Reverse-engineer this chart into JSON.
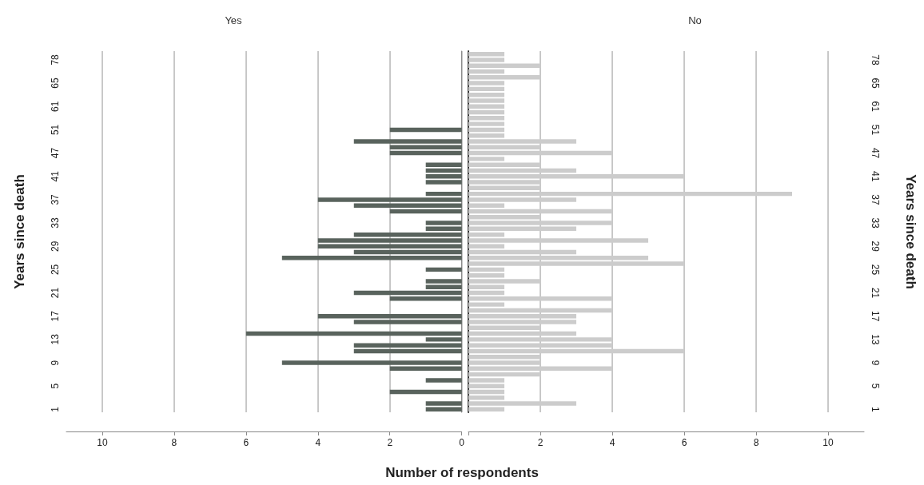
{
  "chart_data": [
    {
      "type": "bar",
      "orientation": "horizontal",
      "title": "Yes",
      "ylabel": "Years since death",
      "xlabel": "Number of respondents",
      "categories": [
        null,
        "78",
        null,
        null,
        null,
        "65",
        null,
        null,
        null,
        "61",
        null,
        null,
        null,
        "51",
        null,
        null,
        null,
        "47",
        null,
        null,
        null,
        "41",
        null,
        null,
        null,
        "37",
        null,
        null,
        null,
        "33",
        null,
        null,
        null,
        "29",
        null,
        null,
        null,
        "25",
        null,
        null,
        null,
        "21",
        null,
        null,
        null,
        "17",
        null,
        null,
        null,
        "13",
        null,
        null,
        null,
        "9",
        null,
        null,
        null,
        "5",
        null,
        null,
        null,
        "1"
      ],
      "series": [
        {
          "color": "#59635d",
          "values": [
            0,
            0,
            0,
            0,
            0,
            0,
            0,
            0,
            0,
            0,
            0,
            0,
            0,
            2,
            0,
            3,
            2,
            2,
            0,
            1,
            1,
            1,
            1,
            0,
            1,
            4,
            3,
            2,
            0,
            1,
            1,
            3,
            4,
            4,
            3,
            5,
            0,
            1,
            0,
            1,
            1,
            3,
            2,
            0,
            0,
            4,
            3,
            0,
            6,
            1,
            3,
            3,
            0,
            5,
            2,
            0,
            1,
            0,
            2,
            0,
            1,
            1
          ]
        }
      ],
      "xlim": [
        11,
        0
      ],
      "xticks": [
        10,
        8,
        6,
        4,
        2,
        0
      ],
      "grid": "x"
    },
    {
      "type": "bar",
      "orientation": "horizontal",
      "title": "No",
      "ylabel": "Years since death",
      "categories": [
        null,
        "78",
        null,
        null,
        null,
        "65",
        null,
        null,
        null,
        "61",
        null,
        null,
        null,
        "51",
        null,
        null,
        null,
        "47",
        null,
        null,
        null,
        "41",
        null,
        null,
        null,
        "37",
        null,
        null,
        null,
        "33",
        null,
        null,
        null,
        "29",
        null,
        null,
        null,
        "25",
        null,
        null,
        null,
        "21",
        null,
        null,
        null,
        "17",
        null,
        null,
        null,
        "13",
        null,
        null,
        null,
        "9",
        null,
        null,
        null,
        "5",
        null,
        null,
        null,
        "1"
      ],
      "series": [
        {
          "color": "#cccccc",
          "values": [
            1,
            1,
            2,
            1,
            2,
            1,
            1,
            1,
            1,
            1,
            1,
            1,
            1,
            1,
            1,
            3,
            2,
            4,
            1,
            2,
            3,
            6,
            2,
            2,
            9,
            3,
            1,
            4,
            2,
            4,
            3,
            1,
            5,
            1,
            3,
            5,
            6,
            1,
            1,
            2,
            1,
            1,
            4,
            1,
            4,
            3,
            3,
            2,
            3,
            4,
            4,
            6,
            2,
            2,
            4,
            2,
            1,
            1,
            1,
            1,
            3,
            1
          ]
        }
      ],
      "xlim": [
        0,
        11
      ],
      "xticks": [
        {
          "value": 0,
          "label": null
        },
        2,
        4,
        6,
        8,
        10
      ],
      "grid": "x"
    }
  ]
}
